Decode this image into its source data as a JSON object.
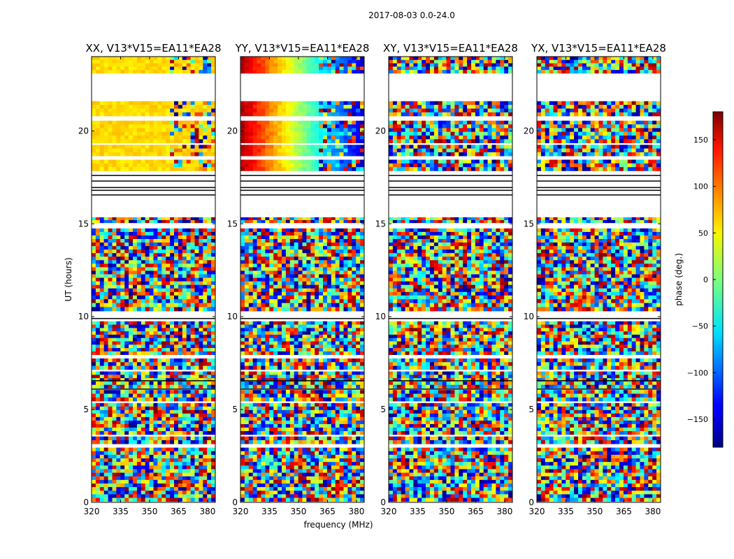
{
  "suptitle": "2017-08-03 0.0-24.0",
  "xlabel": "frequency (MHz)",
  "ylabel": "UT (hours)",
  "colorbar": {
    "label": "phase (deg.)",
    "range": [
      -180,
      180
    ],
    "ticks": [
      "150",
      "100",
      "50",
      "0",
      "−50",
      "−100",
      "−150"
    ],
    "tick_values": [
      150,
      100,
      50,
      0,
      -50,
      -100,
      -150
    ],
    "colormap": "jet"
  },
  "chart_data": [
    {
      "type": "heatmap",
      "title": "XX, V13*V15=EA11*EA28",
      "xlabel": "frequency (MHz)",
      "ylabel": "UT (hours)",
      "xlim": [
        320,
        384
      ],
      "ylim": [
        0,
        24
      ],
      "xticks": [
        320,
        335,
        350,
        365,
        380
      ],
      "yticks": [
        0,
        5,
        10,
        15,
        20
      ],
      "value": "phase (deg.)"
    },
    {
      "type": "heatmap",
      "title": "YY, V13*V15=EA11*EA28",
      "xlabel": "frequency (MHz)",
      "xlim": [
        320,
        384
      ],
      "ylim": [
        0,
        24
      ],
      "xticks": [
        320,
        335,
        350,
        365,
        380
      ],
      "yticks": [
        0,
        5,
        10,
        15,
        20
      ],
      "value": "phase (deg.)"
    },
    {
      "type": "heatmap",
      "title": "XY, V13*V15=EA11*EA28",
      "xlabel": "frequency (MHz)",
      "xlim": [
        320,
        384
      ],
      "ylim": [
        0,
        24
      ],
      "xticks": [
        320,
        335,
        350,
        365,
        380
      ],
      "yticks": [
        0,
        5,
        10,
        15,
        20
      ],
      "value": "phase (deg.)"
    },
    {
      "type": "heatmap",
      "title": "YX, V13*V15=EA11*EA28",
      "xlabel": "frequency (MHz)",
      "xlim": [
        320,
        384
      ],
      "ylim": [
        0,
        24
      ],
      "xticks": [
        320,
        335,
        350,
        365,
        380
      ],
      "yticks": [
        0,
        5,
        10,
        15,
        20
      ],
      "value": "phase (deg.)"
    }
  ]
}
